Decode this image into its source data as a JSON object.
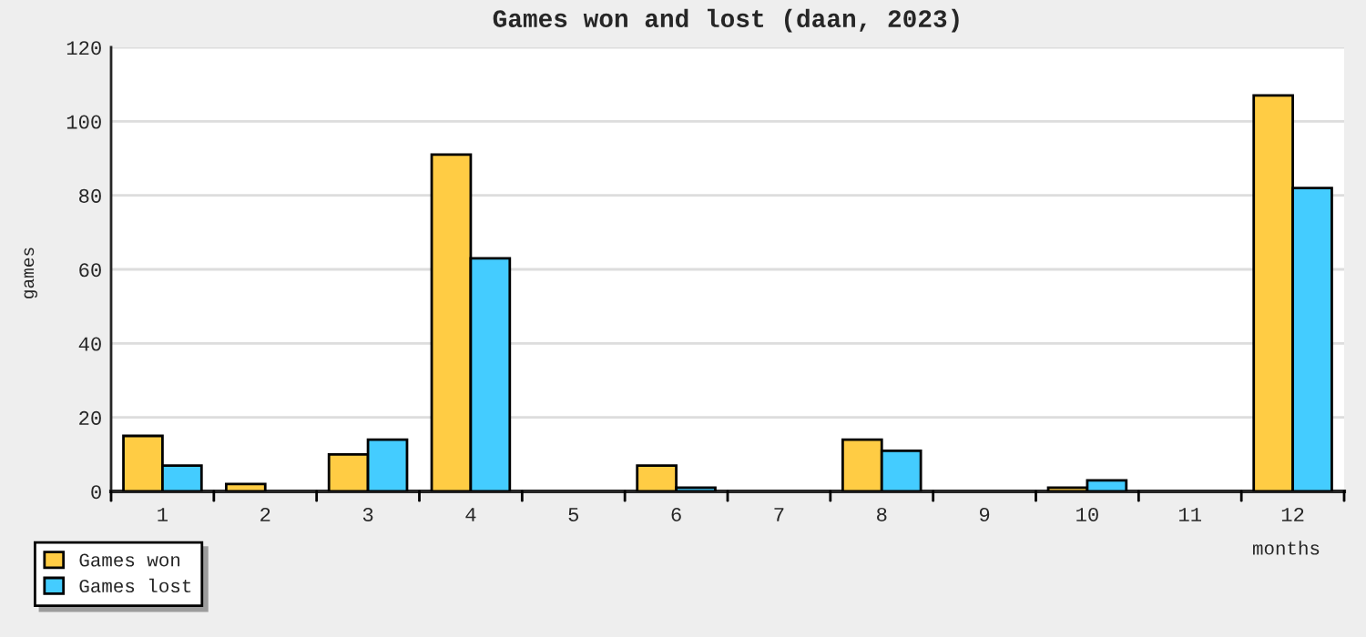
{
  "chart_data": {
    "type": "bar",
    "title": "Games won and lost (daan, 2023)",
    "xlabel": "months",
    "ylabel": "games",
    "categories": [
      "1",
      "2",
      "3",
      "4",
      "5",
      "6",
      "7",
      "8",
      "9",
      "10",
      "11",
      "12"
    ],
    "series": [
      {
        "name": "Games won",
        "color": "#ffcc44",
        "values": [
          15,
          2,
          10,
          91,
          0,
          7,
          0,
          14,
          0,
          1,
          0,
          107
        ]
      },
      {
        "name": "Games lost",
        "color": "#44ccff",
        "values": [
          7,
          0,
          14,
          63,
          0,
          1,
          0,
          11,
          0,
          3,
          0,
          82
        ]
      }
    ],
    "ylim": [
      0,
      120
    ],
    "yticks": [
      0,
      20,
      40,
      60,
      80,
      100,
      120
    ],
    "grid": "y",
    "legend": "bottom left"
  }
}
